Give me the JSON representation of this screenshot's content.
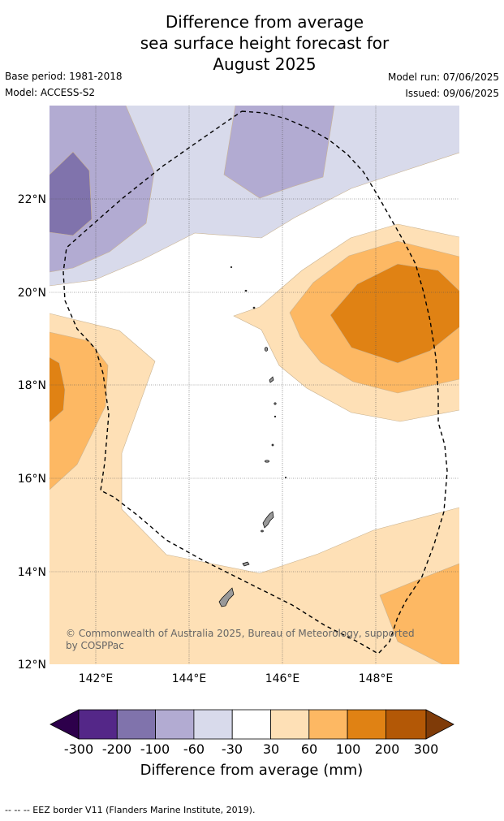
{
  "title": {
    "line1": "Difference from average",
    "line2": "sea surface height forecast for",
    "line3": "August 2025"
  },
  "meta": {
    "base_period": "Base period: 1981-2018",
    "model": "Model: ACCESS-S2",
    "model_run": "Model run: 07/06/2025",
    "issued": "Issued: 09/06/2025"
  },
  "map": {
    "lat_labels": [
      "22°N",
      "20°N",
      "18°N",
      "16°N",
      "14°N",
      "12°N"
    ],
    "lon_labels": [
      "142°E",
      "144°E",
      "146°E",
      "148°E"
    ],
    "copyright_line1": "© Commonwealth of Australia 2025, Bureau of Meteorology, supported",
    "copyright_line2": "by COSPPac"
  },
  "colorbar": {
    "tick_labels": [
      "-300",
      "-200",
      "-100",
      "-60",
      "-30",
      "30",
      "60",
      "100",
      "200",
      "300"
    ],
    "label": "Difference from average (mm)",
    "colors": [
      "#2d004b",
      "#542788",
      "#8073ac",
      "#b2abd2",
      "#d8daeb",
      "#ffffff",
      "#fee0b6",
      "#fdb863",
      "#e08214",
      "#b35806",
      "#7f3b08"
    ]
  },
  "footer": {
    "text": "--  --  -- EEZ border V11 (Flanders Marine Institute, 2019)."
  }
}
